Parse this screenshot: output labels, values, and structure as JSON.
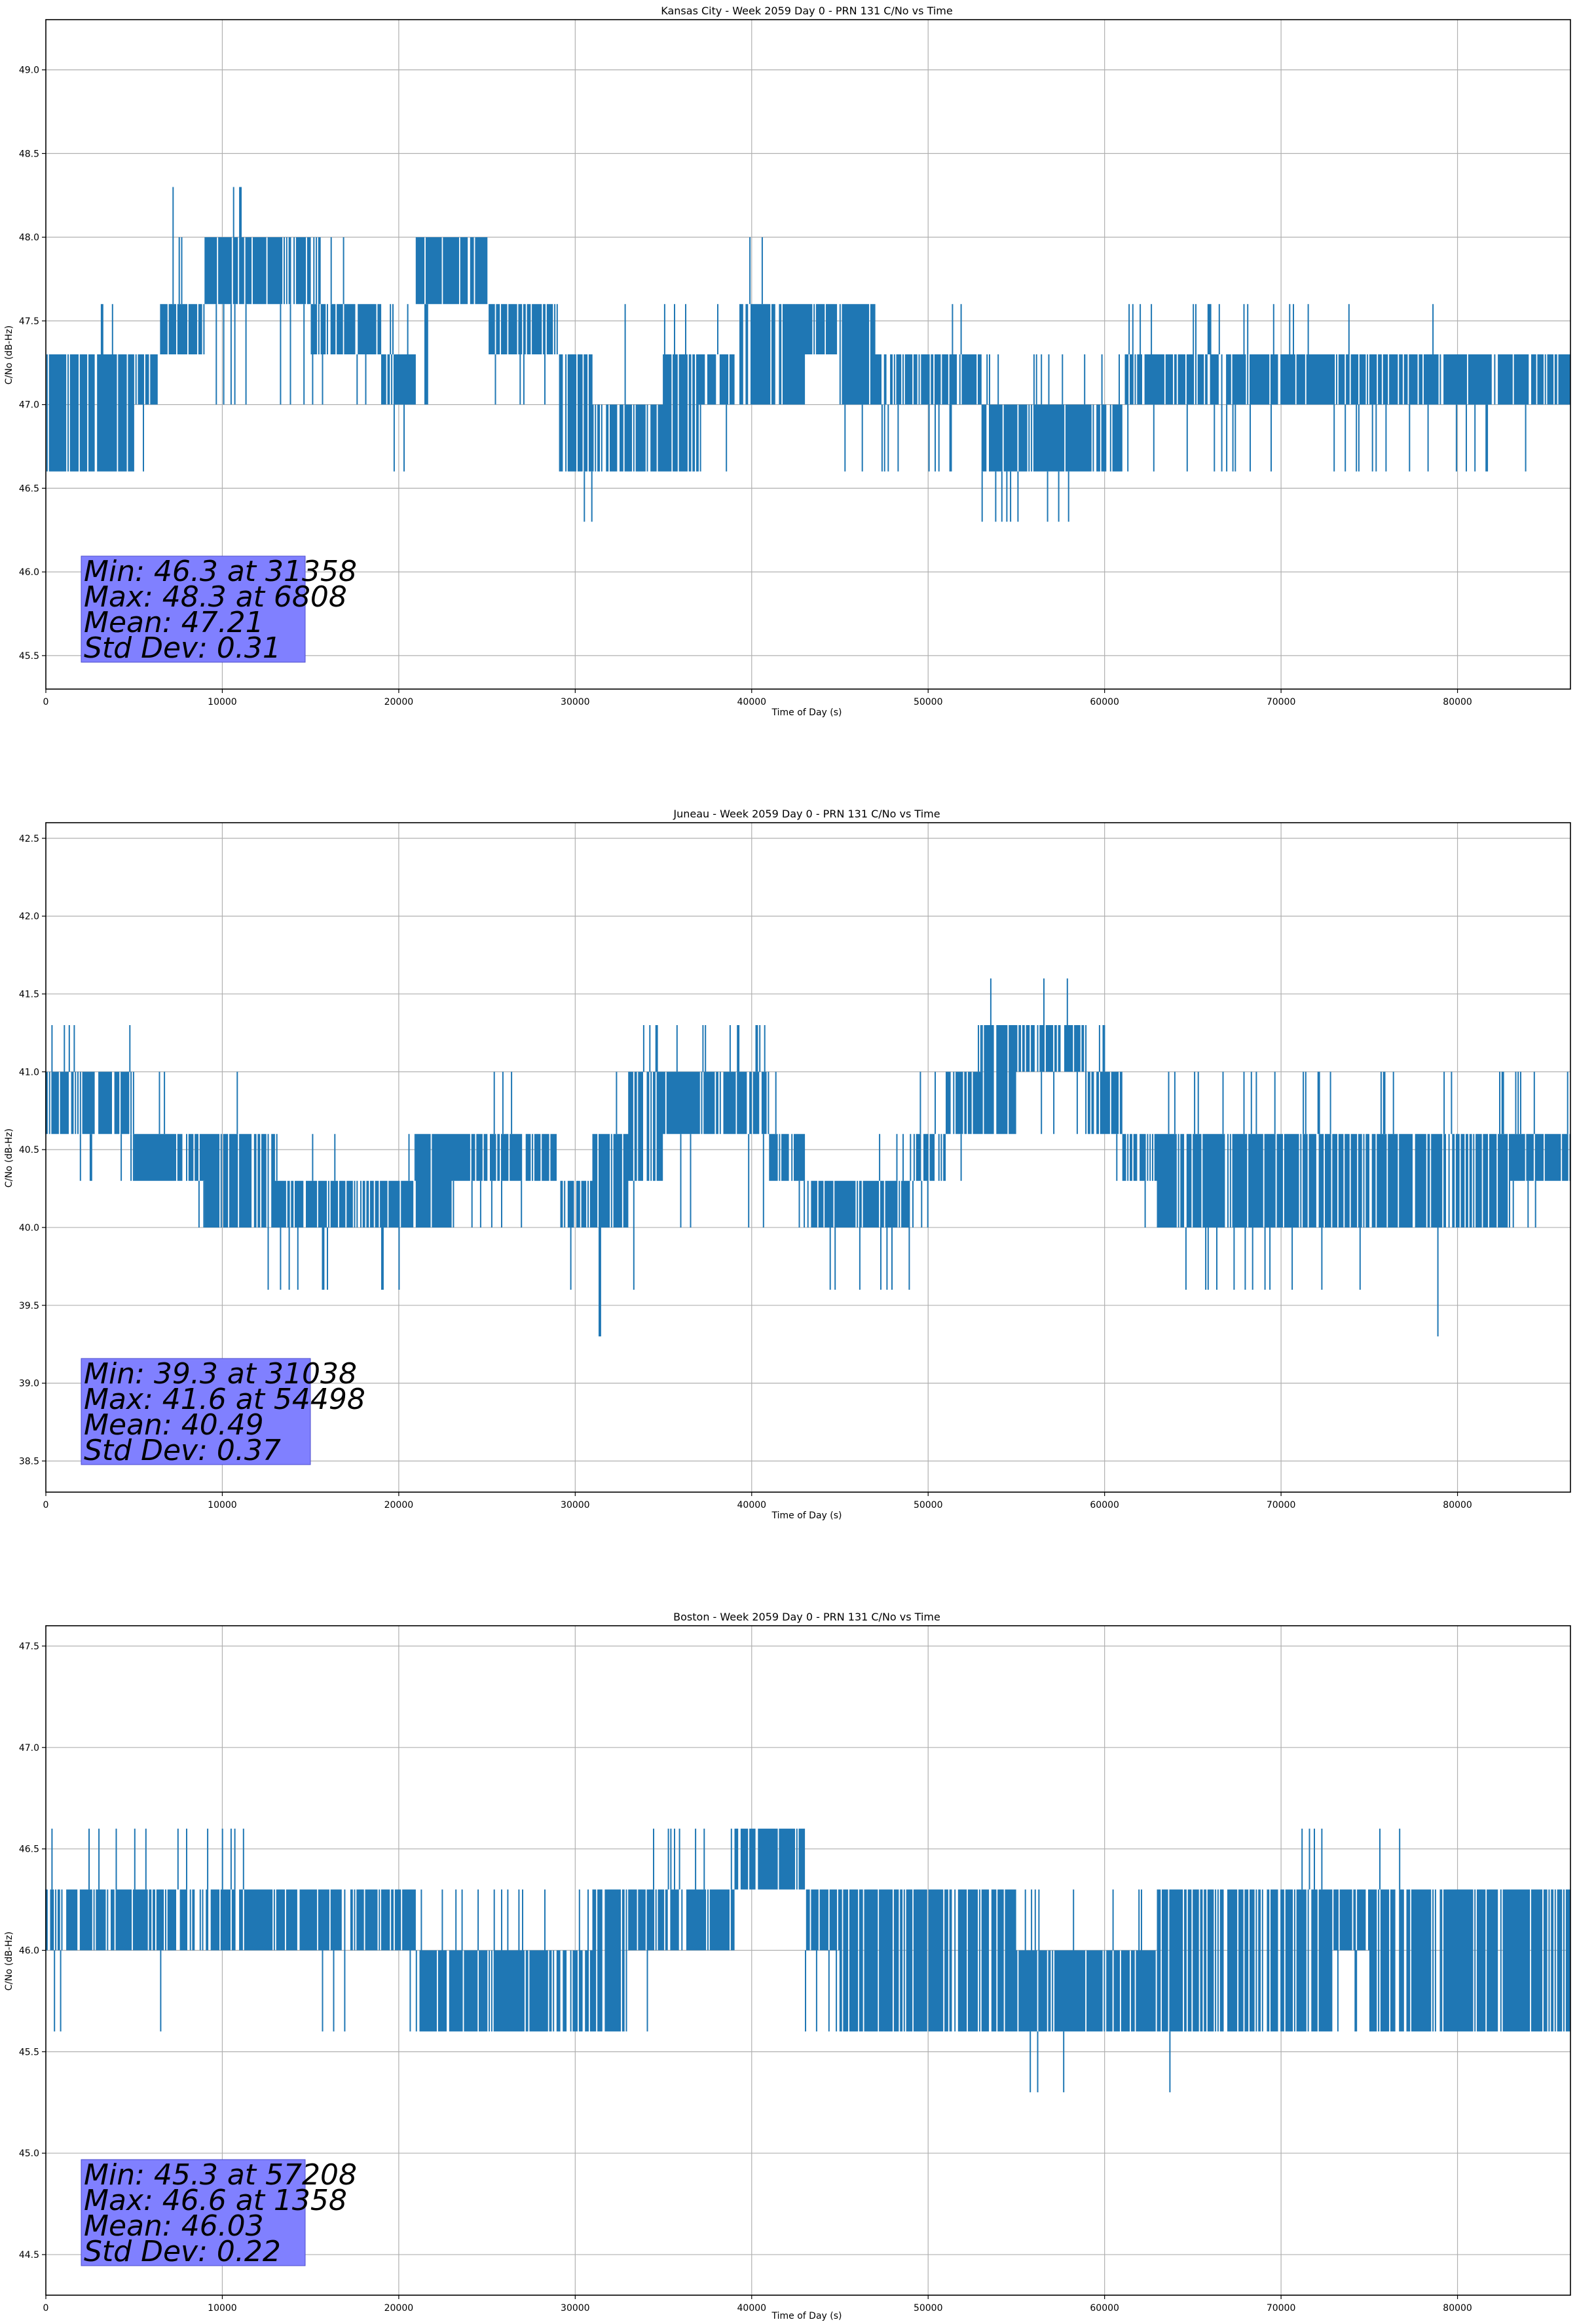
{
  "chart_data": [
    {
      "type": "line",
      "title": "Kansas City - Week 2059 Day 0 - PRN 131 C/No vs Time",
      "xlabel": "Time of Day (s)",
      "ylabel": "C/No (dB-Hz)",
      "xlim": [
        0,
        86400
      ],
      "ylim": [
        45.3,
        49.3
      ],
      "grid": true,
      "xticks": [
        0,
        10000,
        20000,
        30000,
        40000,
        50000,
        60000,
        70000,
        80000
      ],
      "xtick_labels": [
        "0",
        "10000",
        "20000",
        "30000",
        "40000",
        "50000",
        "60000",
        "70000",
        "80000"
      ],
      "yticks": [
        45.5,
        46.0,
        46.5,
        47.0,
        47.5,
        48.0,
        48.5,
        49.0
      ],
      "ytick_labels": [
        "45.5",
        "46.0",
        "46.5",
        "47.0",
        "47.5",
        "48.0",
        "48.5",
        "49.0"
      ],
      "stats": [
        "Min: 46.3 at 31358",
        "Max: 48.3 at 6808",
        "Mean: 47.21",
        "Std Dev: 0.31"
      ],
      "series": [
        {
          "name": "C/No",
          "x": [
            0,
            2000,
            4000,
            6000,
            7000,
            8000,
            10000,
            12000,
            14000,
            16000,
            18000,
            20000,
            22000,
            24000,
            26000,
            28000,
            30000,
            32000,
            34000,
            36000,
            38000,
            40000,
            42000,
            44000,
            46000,
            48000,
            50000,
            52000,
            54000,
            56000,
            58000,
            60000,
            62000,
            64000,
            66000,
            68000,
            70000,
            72000,
            74000,
            76000,
            78000,
            80000,
            82000,
            84000,
            86400
          ],
          "low": [
            46.6,
            46.6,
            46.6,
            47.0,
            47.3,
            47.3,
            47.6,
            47.6,
            47.6,
            47.3,
            47.3,
            47.0,
            47.6,
            47.6,
            47.3,
            47.3,
            46.6,
            46.6,
            46.6,
            46.6,
            47.0,
            47.0,
            47.0,
            47.3,
            47.0,
            47.0,
            47.0,
            47.0,
            46.6,
            46.6,
            46.6,
            46.6,
            47.0,
            47.0,
            47.0,
            47.0,
            47.0,
            47.0,
            47.0,
            47.0,
            47.0,
            47.0,
            47.0,
            47.0,
            47.0
          ],
          "high": [
            47.3,
            47.3,
            47.3,
            47.3,
            47.6,
            47.6,
            48.0,
            48.0,
            48.0,
            47.6,
            47.6,
            47.3,
            48.0,
            48.0,
            47.6,
            47.6,
            47.3,
            47.0,
            47.0,
            47.3,
            47.3,
            47.6,
            47.6,
            47.6,
            47.6,
            47.3,
            47.3,
            47.3,
            47.0,
            47.0,
            47.0,
            47.0,
            47.3,
            47.3,
            47.3,
            47.3,
            47.3,
            47.3,
            47.3,
            47.3,
            47.3,
            47.3,
            47.3,
            47.3,
            47.3
          ],
          "spike_min": [
            46.6,
            46.6,
            46.6,
            46.6,
            47.3,
            47.0,
            47.0,
            47.0,
            47.0,
            47.0,
            47.0,
            46.6,
            47.0,
            47.3,
            47.0,
            47.0,
            46.3,
            46.6,
            46.6,
            46.6,
            46.6,
            47.0,
            47.0,
            47.0,
            46.6,
            46.6,
            46.6,
            46.6,
            46.3,
            46.3,
            46.3,
            46.6,
            46.6,
            46.6,
            46.6,
            46.6,
            46.6,
            46.6,
            46.6,
            46.6,
            46.6,
            46.6,
            46.6,
            46.6,
            46.6
          ],
          "spike_max": [
            47.3,
            47.3,
            47.6,
            47.3,
            48.3,
            48.0,
            48.3,
            48.3,
            48.3,
            48.0,
            47.6,
            47.6,
            48.0,
            48.0,
            47.6,
            47.6,
            47.3,
            47.6,
            47.6,
            47.6,
            47.6,
            48.0,
            47.6,
            48.0,
            47.6,
            47.3,
            47.3,
            47.6,
            47.3,
            47.3,
            47.3,
            47.3,
            47.6,
            47.6,
            47.6,
            47.6,
            47.6,
            47.6,
            47.6,
            47.6,
            47.6,
            47.3,
            47.3,
            47.3,
            47.3
          ]
        }
      ]
    },
    {
      "type": "line",
      "title": "Juneau - Week 2059 Day 0 - PRN 131 C/No vs Time",
      "xlabel": "Time of Day (s)",
      "ylabel": "C/No (dB-Hz)",
      "xlim": [
        0,
        86400
      ],
      "ylim": [
        38.3,
        42.6
      ],
      "grid": true,
      "xticks": [
        0,
        10000,
        20000,
        30000,
        40000,
        50000,
        60000,
        70000,
        80000
      ],
      "xtick_labels": [
        "0",
        "10000",
        "20000",
        "30000",
        "40000",
        "50000",
        "60000",
        "70000",
        "80000"
      ],
      "yticks": [
        38.5,
        39.0,
        39.5,
        40.0,
        40.5,
        41.0,
        41.5,
        42.0,
        42.5
      ],
      "ytick_labels": [
        "38.5",
        "39.0",
        "39.5",
        "40.0",
        "40.5",
        "41.0",
        "41.5",
        "42.0",
        "42.5"
      ],
      "stats": [
        "Min: 39.3 at 31038",
        "Max: 41.6 at 54498",
        "Mean: 40.49",
        "Std Dev: 0.37"
      ],
      "series": [
        {
          "name": "C/No",
          "x": [
            0,
            2000,
            4000,
            6000,
            8000,
            10000,
            12000,
            14000,
            16000,
            18000,
            20000,
            22000,
            24000,
            26000,
            28000,
            30000,
            32000,
            34000,
            36000,
            38000,
            40000,
            42000,
            44000,
            46000,
            48000,
            50000,
            52000,
            54000,
            56000,
            58000,
            60000,
            62000,
            64000,
            66000,
            68000,
            70000,
            72000,
            74000,
            76000,
            78000,
            80000,
            82000,
            84000,
            86400
          ],
          "low": [
            40.6,
            40.6,
            40.6,
            40.3,
            40.3,
            40.0,
            40.0,
            40.0,
            40.0,
            40.0,
            40.0,
            40.0,
            40.3,
            40.3,
            40.3,
            40.0,
            40.0,
            40.3,
            40.6,
            40.6,
            40.6,
            40.3,
            40.0,
            40.0,
            40.0,
            40.3,
            40.6,
            40.6,
            41.0,
            41.0,
            40.6,
            40.3,
            40.0,
            40.0,
            40.0,
            40.0,
            40.0,
            40.0,
            40.0,
            40.0,
            40.0,
            40.0,
            40.3,
            40.3
          ],
          "high": [
            41.0,
            41.0,
            41.0,
            40.6,
            40.6,
            40.6,
            40.6,
            40.3,
            40.3,
            40.3,
            40.3,
            40.6,
            40.6,
            40.6,
            40.6,
            40.3,
            40.6,
            41.0,
            41.0,
            41.0,
            41.0,
            40.6,
            40.3,
            40.3,
            40.3,
            40.6,
            41.0,
            41.3,
            41.3,
            41.3,
            41.0,
            40.6,
            40.6,
            40.6,
            40.6,
            40.6,
            40.6,
            40.6,
            40.6,
            40.6,
            40.6,
            40.6,
            40.6,
            40.6
          ],
          "spike_min": [
            40.3,
            40.3,
            40.3,
            40.0,
            40.0,
            40.0,
            39.6,
            39.6,
            39.6,
            39.6,
            39.6,
            40.0,
            40.0,
            40.0,
            39.6,
            39.6,
            39.3,
            39.6,
            40.0,
            40.0,
            40.0,
            40.0,
            39.6,
            39.6,
            39.6,
            40.0,
            40.3,
            40.6,
            40.6,
            40.6,
            40.3,
            40.0,
            39.6,
            39.6,
            39.6,
            39.6,
            39.6,
            39.6,
            39.6,
            39.3,
            39.6,
            40.0,
            40.0,
            40.0
          ],
          "spike_max": [
            41.3,
            41.3,
            41.3,
            41.0,
            41.0,
            41.0,
            41.0,
            40.6,
            40.6,
            40.6,
            40.6,
            40.6,
            40.6,
            41.0,
            40.6,
            40.6,
            41.0,
            41.3,
            41.3,
            41.3,
            41.3,
            41.0,
            40.3,
            40.3,
            40.6,
            41.0,
            41.3,
            41.6,
            41.6,
            41.6,
            41.3,
            41.0,
            41.0,
            41.0,
            41.0,
            41.0,
            41.0,
            40.6,
            41.0,
            41.3,
            41.0,
            41.0,
            41.0,
            41.0
          ]
        }
      ]
    },
    {
      "type": "line",
      "title": "Boston - Week 2059 Day 0 - PRN 131 C/No vs Time",
      "xlabel": "Time of Day (s)",
      "ylabel": "C/No (dB-Hz)",
      "xlim": [
        0,
        86400
      ],
      "ylim": [
        44.3,
        47.6
      ],
      "grid": true,
      "xticks": [
        0,
        10000,
        20000,
        30000,
        40000,
        50000,
        60000,
        70000,
        80000
      ],
      "xtick_labels": [
        "0",
        "10000",
        "20000",
        "30000",
        "40000",
        "50000",
        "60000",
        "70000",
        "80000"
      ],
      "yticks": [
        44.5,
        45.0,
        45.5,
        46.0,
        46.5,
        47.0,
        47.5
      ],
      "ytick_labels": [
        "44.5",
        "45.0",
        "45.5",
        "46.0",
        "46.5",
        "47.0",
        "47.5"
      ],
      "stats": [
        "Min: 45.3 at 57208",
        "Max: 46.6 at 1358",
        "Mean: 46.03",
        "Std Dev: 0.22"
      ],
      "series": [
        {
          "name": "C/No",
          "x": [
            0,
            2000,
            4000,
            6000,
            8000,
            10000,
            12000,
            14000,
            16000,
            18000,
            20000,
            22000,
            24000,
            26000,
            28000,
            30000,
            32000,
            34000,
            36000,
            38000,
            40000,
            42000,
            44000,
            46000,
            48000,
            50000,
            52000,
            54000,
            56000,
            58000,
            60000,
            62000,
            64000,
            66000,
            68000,
            70000,
            72000,
            74000,
            76000,
            78000,
            80000,
            82000,
            84000,
            86400
          ],
          "low": [
            46.0,
            46.0,
            46.0,
            46.0,
            46.0,
            46.0,
            46.0,
            46.0,
            46.0,
            46.0,
            46.0,
            45.6,
            45.6,
            45.6,
            45.6,
            45.6,
            45.6,
            46.0,
            46.0,
            46.0,
            46.3,
            46.3,
            46.0,
            45.6,
            45.6,
            45.6,
            45.6,
            45.6,
            45.6,
            45.6,
            45.6,
            45.6,
            45.6,
            45.6,
            45.6,
            45.6,
            45.6,
            46.0,
            45.6,
            45.6,
            45.6,
            45.6,
            45.6,
            45.6
          ],
          "high": [
            46.3,
            46.3,
            46.3,
            46.3,
            46.3,
            46.3,
            46.3,
            46.3,
            46.3,
            46.3,
            46.3,
            46.0,
            46.0,
            46.0,
            46.0,
            46.0,
            46.3,
            46.3,
            46.3,
            46.3,
            46.6,
            46.6,
            46.3,
            46.3,
            46.3,
            46.3,
            46.3,
            46.3,
            46.0,
            46.0,
            46.0,
            46.0,
            46.3,
            46.3,
            46.3,
            46.3,
            46.3,
            46.3,
            46.3,
            46.3,
            46.3,
            46.3,
            46.3,
            46.3
          ],
          "spike_min": [
            45.6,
            46.0,
            46.0,
            45.6,
            46.0,
            46.0,
            46.0,
            46.0,
            45.6,
            46.0,
            45.6,
            45.6,
            45.6,
            45.6,
            45.6,
            45.6,
            45.6,
            45.6,
            46.0,
            46.0,
            46.0,
            46.0,
            45.6,
            45.6,
            45.6,
            45.6,
            45.6,
            45.6,
            45.3,
            45.3,
            45.6,
            45.6,
            45.3,
            45.6,
            45.6,
            45.6,
            45.6,
            45.6,
            45.6,
            45.6,
            45.6,
            45.6,
            45.6,
            45.6
          ],
          "spike_max": [
            46.6,
            46.6,
            46.6,
            46.6,
            46.6,
            46.6,
            46.6,
            46.3,
            46.3,
            46.3,
            46.3,
            46.3,
            46.3,
            46.3,
            46.3,
            46.3,
            46.3,
            46.6,
            46.6,
            46.6,
            46.6,
            46.6,
            46.3,
            46.3,
            46.3,
            46.3,
            46.3,
            46.3,
            46.3,
            46.3,
            46.3,
            46.3,
            46.3,
            46.3,
            46.3,
            46.3,
            46.6,
            46.6,
            46.6,
            46.3,
            46.3,
            46.3,
            46.3,
            46.3
          ]
        }
      ]
    }
  ]
}
